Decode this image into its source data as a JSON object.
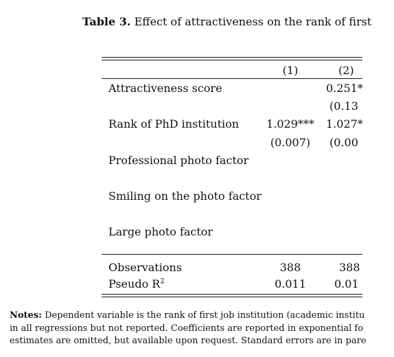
{
  "caption": {
    "label": "Table 3.",
    "text": "Effect of attractiveness on the rank of first"
  },
  "table": {
    "columns": [
      "(1)",
      "(2)"
    ],
    "rows": [
      {
        "label": "Attractiveness score",
        "c1": "",
        "c2": "0.251*"
      },
      {
        "label": "",
        "c1": "",
        "c2": "(0.13"
      },
      {
        "label": "Rank of PhD institution",
        "c1": "1.029***",
        "c2": "1.027*"
      },
      {
        "label": "",
        "c1": "(0.007)",
        "c2": "(0.00"
      },
      {
        "label": "Professional photo factor",
        "c1": "",
        "c2": ""
      },
      {
        "label": "Smiling on the photo factor",
        "c1": "",
        "c2": ""
      },
      {
        "label": "Large photo factor",
        "c1": "",
        "c2": ""
      },
      {
        "label": "Observations",
        "c1": "388",
        "c2": "388"
      },
      {
        "label": "Pseudo R",
        "sup": "2",
        "c1": "0.011",
        "c2": "0.01"
      }
    ]
  },
  "notes": {
    "label": "Notes:",
    "line1": "Dependent variable is the rank of first job institution (academic institu",
    "line2": "in all regressions but not reported. Coefficients are reported in exponential fo",
    "line3": "estimates are omitted, but available upon request. Standard errors are in pare"
  }
}
